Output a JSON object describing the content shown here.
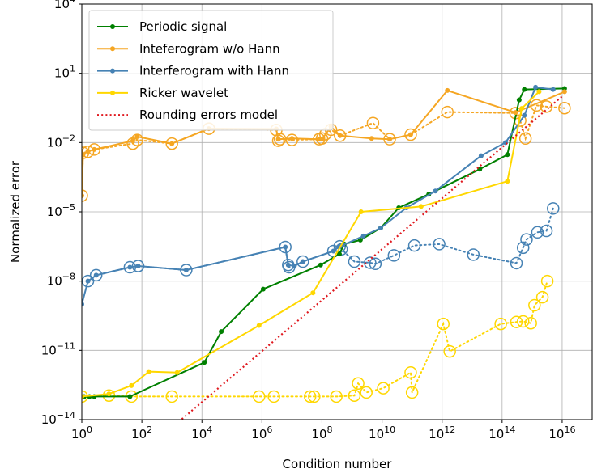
{
  "chart_data": {
    "type": "line",
    "title": "",
    "xlabel": "Condition number",
    "ylabel": "Normalized error",
    "xscale": "log",
    "yscale": "log",
    "xlim": [
      1,
      1e+17
    ],
    "ylim": [
      1e-14,
      10000.0
    ],
    "grid": true,
    "legend_position": "top-left",
    "xticks": [
      {
        "value": 1,
        "mant": "10",
        "exp": "0"
      },
      {
        "value": 100,
        "mant": "10",
        "exp": "2"
      },
      {
        "value": 10000,
        "mant": "10",
        "exp": "4"
      },
      {
        "value": 1000000.0,
        "mant": "10",
        "exp": "6"
      },
      {
        "value": 100000000.0,
        "mant": "10",
        "exp": "8"
      },
      {
        "value": 10000000000.0,
        "mant": "10",
        "exp": "10"
      },
      {
        "value": 1000000000000.0,
        "mant": "10",
        "exp": "12"
      },
      {
        "value": 100000000000000.0,
        "mant": "10",
        "exp": "14"
      },
      {
        "value": 1e+16,
        "mant": "10",
        "exp": "16"
      }
    ],
    "yticks": [
      {
        "value": 1e-14,
        "mant": "10",
        "exp": "−14"
      },
      {
        "value": 1e-11,
        "mant": "10",
        "exp": "−11"
      },
      {
        "value": 1e-08,
        "mant": "10",
        "exp": "−8"
      },
      {
        "value": 1e-05,
        "mant": "10",
        "exp": "−5"
      },
      {
        "value": 0.01,
        "mant": "10",
        "exp": "−2"
      },
      {
        "value": 10,
        "mant": "10",
        "exp": "1"
      },
      {
        "value": 10000,
        "mant": "10",
        "exp": "4"
      }
    ],
    "series": [
      {
        "name": "Periodic signal",
        "color": "#008000",
        "style": "solid-markers",
        "points": [
          [
            1.2,
            1e-13
          ],
          [
            1.8,
            1e-13
          ],
          [
            2.6,
            1e-13
          ],
          [
            40,
            1e-13
          ],
          [
            12000,
            3e-12
          ],
          [
            44000,
            6.5e-11
          ],
          [
            1100000.0,
            4.5e-09
          ],
          [
            90000000.0,
            5e-08
          ],
          [
            380000000.0,
            1.5e-07
          ],
          [
            550000000.0,
            4e-07
          ],
          [
            1900000000.0,
            6e-07
          ],
          [
            9000000000.0,
            2e-06
          ],
          [
            36000000000.0,
            1.5e-05
          ],
          [
            360000000000.0,
            5.8e-05
          ],
          [
            18000000000000.0,
            0.0007
          ],
          [
            150000000000000.0,
            0.003
          ],
          [
            370000000000000.0,
            0.7
          ],
          [
            550000000000000.0,
            2
          ],
          [
            1.2e+16,
            2.2
          ]
        ]
      },
      {
        "name": "Inteferogram w/o Hann",
        "color": "#f5a623",
        "style": "solid-markers",
        "points": [
          [
            1,
            5e-05
          ],
          [
            1.1,
            0.003
          ],
          [
            1.6,
            0.0042
          ],
          [
            2.6,
            0.005
          ],
          [
            50,
            0.012
          ],
          [
            70,
            0.018
          ],
          [
            1000,
            0.009
          ],
          [
            17000,
            0.04
          ],
          [
            3000000.0,
            0.039
          ],
          [
            3500000.0,
            0.014
          ],
          [
            10000000.0,
            0.015
          ],
          [
            80000000.0,
            0.014
          ],
          [
            100000000.0,
            0.014
          ],
          [
            200000000.0,
            0.05
          ],
          [
            400000000.0,
            0.02
          ],
          [
            4500000000.0,
            0.015
          ],
          [
            18000000000.0,
            0.014
          ],
          [
            90000000000.0,
            0.022
          ],
          [
            1500000000000.0,
            1.8
          ],
          [
            280000000000000.0,
            0.2
          ],
          [
            1.2e+16,
            1.6
          ]
        ]
      },
      {
        "name": "Interferogram with Hann",
        "color": "#4682b4",
        "style": "solid-markers",
        "points": [
          [
            1,
            1e-09
          ],
          [
            1.6,
            1e-08
          ],
          [
            3,
            1.8e-08
          ],
          [
            40,
            4e-08
          ],
          [
            75,
            4.5e-08
          ],
          [
            3000,
            3e-08
          ],
          [
            6000000.0,
            3e-07
          ],
          [
            7500000.0,
            5e-08
          ],
          [
            12000000.0,
            4.5e-08
          ],
          [
            23000000.0,
            7e-08
          ],
          [
            240000000.0,
            2e-07
          ],
          [
            390000000.0,
            3.2e-07
          ],
          [
            500000000.0,
            3.6e-07
          ],
          [
            2400000000.0,
            9e-07
          ],
          [
            9000000000.0,
            2e-06
          ],
          [
            65000000000.0,
            1.5e-05
          ],
          [
            600000000000.0,
            8e-05
          ],
          [
            20000000000000.0,
            0.0027
          ],
          [
            130000000000000.0,
            0.01
          ],
          [
            550000000000000.0,
            0.15
          ],
          [
            1300000000000000.0,
            2.5
          ],
          [
            5000000000000000.0,
            2
          ]
        ]
      },
      {
        "name": "Ricker wavelet",
        "color": "#ffd700",
        "style": "solid-markers",
        "points": [
          [
            1,
            1e-13
          ],
          [
            8,
            1.3e-13
          ],
          [
            45,
            3e-13
          ],
          [
            170,
            1.2e-12
          ],
          [
            1500,
            1.1e-12
          ],
          [
            800000.0,
            1.2e-10
          ],
          [
            50000000.0,
            3.1e-09
          ],
          [
            2000000000.0,
            1e-05
          ],
          [
            200000000000.0,
            1.7e-05
          ],
          [
            150000000000000.0,
            0.00021
          ],
          [
            450000000000000.0,
            0.3
          ],
          [
            1700000000000000.0,
            1.6
          ]
        ]
      },
      {
        "name": "Rounding errors model",
        "color": "#e0191f",
        "style": "dotted",
        "points": [
          [
            300,
            1.2e-15
          ],
          [
            1e+16,
            1
          ]
        ]
      }
    ],
    "hollow_series": [
      {
        "name": "",
        "color": "#f5a623",
        "points": [
          [
            1,
            5e-05
          ],
          [
            1.1,
            0.0036
          ],
          [
            1.6,
            0.004
          ],
          [
            2.6,
            0.005
          ],
          [
            50,
            0.009
          ],
          [
            70,
            0.013
          ],
          [
            1000,
            0.009
          ],
          [
            17000,
            0.04
          ],
          [
            3000000.0,
            0.035
          ],
          [
            3500000.0,
            0.012
          ],
          [
            4000000.0,
            0.014
          ],
          [
            10000000.0,
            0.013
          ],
          [
            80000000.0,
            0.014
          ],
          [
            100000000.0,
            0.015
          ],
          [
            130000000.0,
            0.023
          ],
          [
            200000000.0,
            0.036
          ],
          [
            400000000.0,
            0.02
          ],
          [
            5000000000.0,
            0.07
          ],
          [
            18000000000.0,
            0.014
          ],
          [
            90000000000.0,
            0.022
          ],
          [
            1500000000000.0,
            0.21
          ],
          [
            280000000000000.0,
            0.19
          ],
          [
            400000000000000.0,
            0.09
          ],
          [
            600000000000000.0,
            0.015
          ],
          [
            1400000000000000.0,
            0.41
          ],
          [
            3000000000000000.0,
            0.36
          ],
          [
            1.2e+16,
            0.31
          ]
        ]
      },
      {
        "name": "",
        "color": "#4682b4",
        "points": [
          [
            1.6,
            1e-08
          ],
          [
            3,
            1.8e-08
          ],
          [
            40,
            4e-08
          ],
          [
            75,
            4.5e-08
          ],
          [
            3000,
            3e-08
          ],
          [
            6000000.0,
            3e-07
          ],
          [
            7500000.0,
            5e-08
          ],
          [
            8000000.0,
            4e-08
          ],
          [
            23000000.0,
            7e-08
          ],
          [
            240000000.0,
            2e-07
          ],
          [
            390000000.0,
            3.2e-07
          ],
          [
            450000000.0,
            2.4e-07
          ],
          [
            1200000000.0,
            7e-08
          ],
          [
            4000000000.0,
            6.2e-08
          ],
          [
            6000000000.0,
            5.6e-08
          ],
          [
            25000000000.0,
            1.3e-07
          ],
          [
            120000000000.0,
            3.5e-07
          ],
          [
            800000000000.0,
            4e-07
          ],
          [
            11000000000000.0,
            1.4e-07
          ],
          [
            300000000000000.0,
            6e-08
          ],
          [
            500000000000000.0,
            2.8e-07
          ],
          [
            650000000000000.0,
            6.4e-07
          ],
          [
            1500000000000000.0,
            1.3e-06
          ],
          [
            3000000000000000.0,
            1.5e-06
          ],
          [
            5000000000000000.0,
            1.4e-05
          ]
        ]
      },
      {
        "name": "",
        "color": "#ffd700",
        "points": [
          [
            1,
            1e-13
          ],
          [
            8,
            1.1e-13
          ],
          [
            45,
            1e-13
          ],
          [
            1000,
            1e-13
          ],
          [
            800000.0,
            1e-13
          ],
          [
            2500000.0,
            1e-13
          ],
          [
            40000000.0,
            1e-13
          ],
          [
            55000000.0,
            1e-13
          ],
          [
            300000000.0,
            1e-13
          ],
          [
            1200000000.0,
            1.1e-13
          ],
          [
            1600000000.0,
            3.7e-13
          ],
          [
            3000000000.0,
            1.5e-13
          ],
          [
            11000000000.0,
            2.3e-13
          ],
          [
            90000000000.0,
            1.1e-12
          ],
          [
            100000000000.0,
            1.5e-13
          ],
          [
            1100000000000.0,
            1.4e-10
          ],
          [
            1800000000000.0,
            9e-12
          ],
          [
            90000000000000.0,
            1.4e-10
          ],
          [
            300000000000000.0,
            1.7e-10
          ],
          [
            500000000000000.0,
            1.8e-10
          ],
          [
            900000000000000.0,
            1.5e-10
          ],
          [
            1200000000000000.0,
            9e-10
          ],
          [
            2200000000000000.0,
            2e-09
          ],
          [
            3200000000000000.0,
            1e-08
          ]
        ]
      }
    ]
  }
}
